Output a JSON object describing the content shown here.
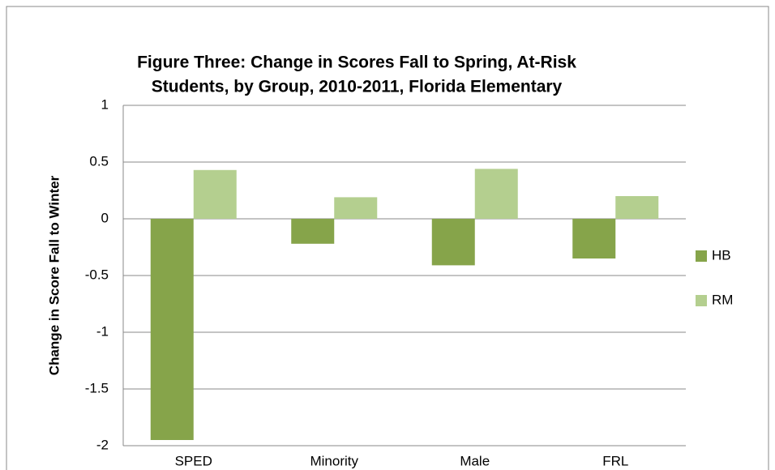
{
  "chart_data": {
    "type": "bar",
    "title": [
      "Figure Three: Change in Scores Fall to Spring, At-Risk",
      "Students, by Group, 2010-2011, Florida Elementary"
    ],
    "y_label": "Change in Score Fall to Winter",
    "categories": [
      "SPED",
      "Minority",
      "Male",
      "FRL"
    ],
    "series": [
      {
        "name": "HB",
        "color": "#86a44a",
        "values": [
          -1.95,
          -0.22,
          -0.41,
          -0.35
        ]
      },
      {
        "name": "RM",
        "color": "#b4cf8f",
        "values": [
          0.43,
          0.19,
          0.44,
          0.2
        ]
      }
    ],
    "ylim": [
      -2,
      1
    ],
    "yticks": [
      -2,
      -1.5,
      -1,
      -0.5,
      0,
      0.5,
      1
    ],
    "grid": true,
    "legend": "right"
  }
}
